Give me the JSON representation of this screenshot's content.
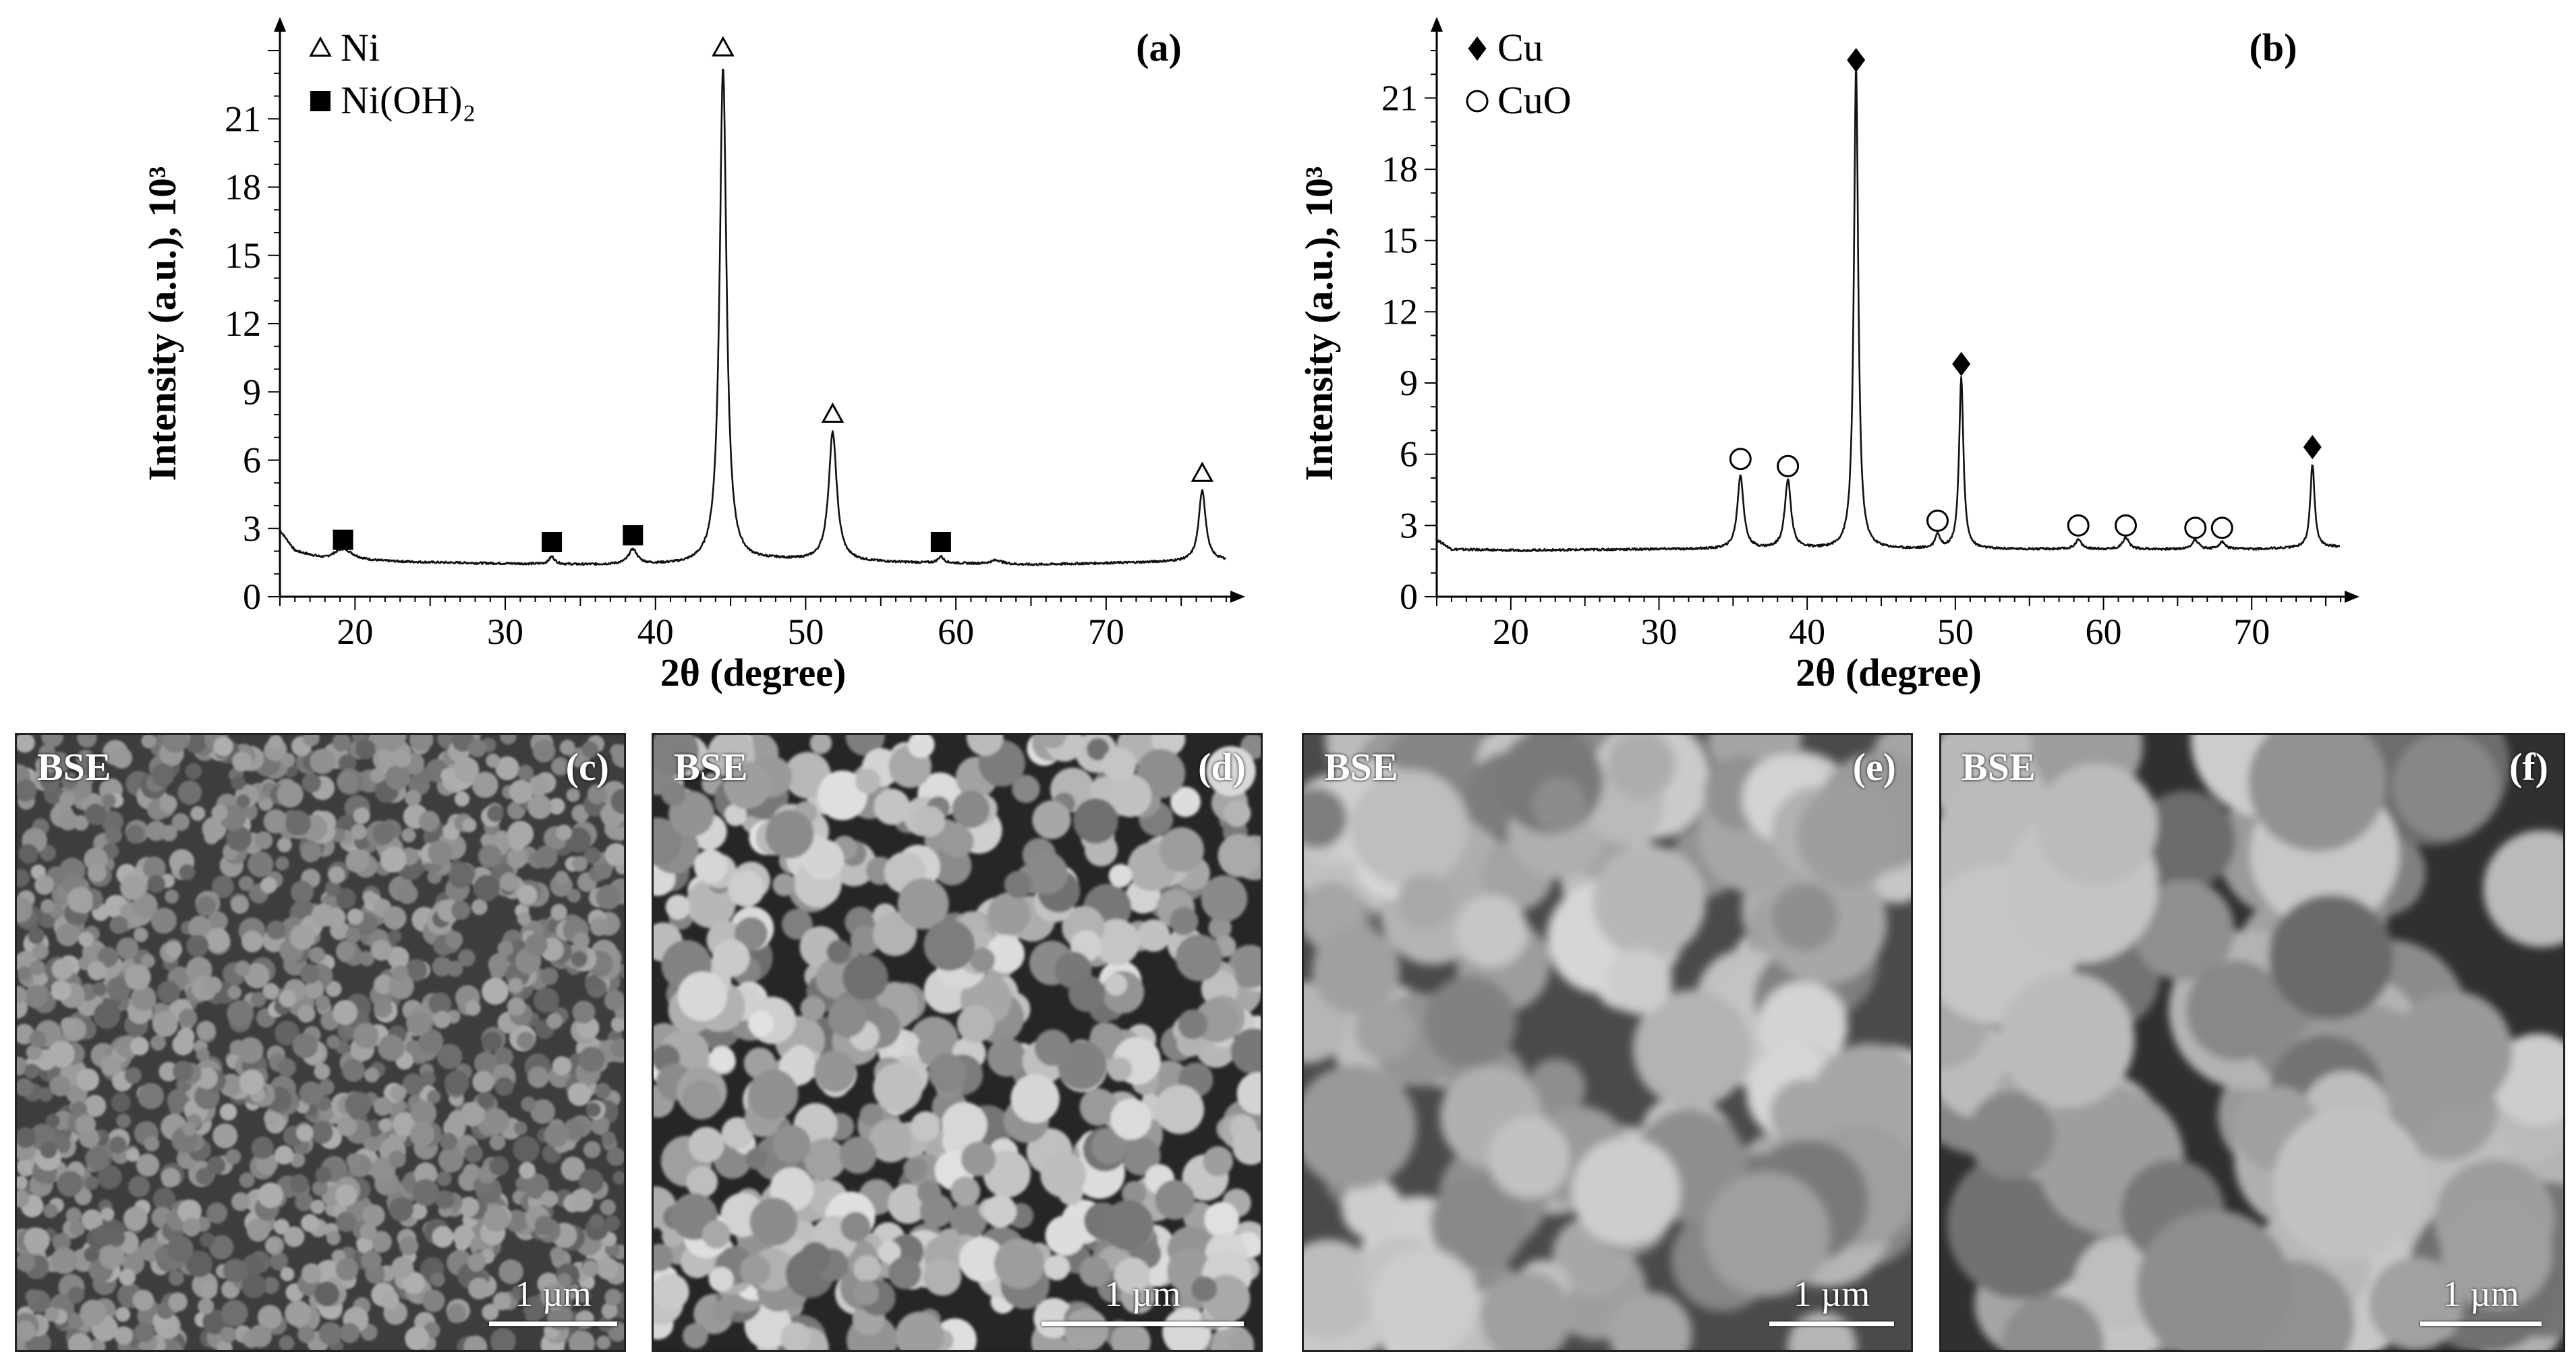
{
  "chart_data": [
    {
      "type": "line",
      "panel_label": "(a)",
      "xlabel": "2θ (degree)",
      "ylabel": "Intensity (a.u.), 10³",
      "xlim": [
        15,
        78
      ],
      "ylim": [
        0,
        24
      ],
      "x_ticks": [
        20,
        30,
        40,
        50,
        60,
        70
      ],
      "y_ticks": [
        0,
        3,
        6,
        9,
        12,
        15,
        18,
        21
      ],
      "baseline": [
        [
          15,
          2.9
        ],
        [
          16,
          2.0
        ],
        [
          18,
          1.6
        ],
        [
          25,
          1.5
        ],
        [
          35,
          1.4
        ],
        [
          42,
          1.4
        ],
        [
          48,
          1.6
        ],
        [
          56,
          1.5
        ],
        [
          65,
          1.4
        ],
        [
          72,
          1.5
        ],
        [
          78,
          1.6
        ]
      ],
      "peaks": [
        {
          "x": 19.2,
          "y": 2.1,
          "w": 1.6
        },
        {
          "x": 33.1,
          "y": 1.75,
          "w": 0.45
        },
        {
          "x": 38.5,
          "y": 2.05,
          "w": 0.7
        },
        {
          "x": 44.5,
          "y": 23.3,
          "w": 0.55
        },
        {
          "x": 51.8,
          "y": 7.2,
          "w": 0.65
        },
        {
          "x": 59.0,
          "y": 1.75,
          "w": 0.45
        },
        {
          "x": 62.7,
          "y": 1.6,
          "w": 0.9
        },
        {
          "x": 76.4,
          "y": 4.7,
          "w": 0.55
        }
      ],
      "markers": [
        {
          "symbol": "triangle",
          "x": 44.5,
          "y": 24.1
        },
        {
          "symbol": "triangle",
          "x": 51.8,
          "y": 8.0
        },
        {
          "symbol": "triangle",
          "x": 76.4,
          "y": 5.4
        },
        {
          "symbol": "square",
          "x": 19.2,
          "y": 2.5
        },
        {
          "symbol": "square",
          "x": 33.1,
          "y": 2.4
        },
        {
          "symbol": "square",
          "x": 38.5,
          "y": 2.7
        },
        {
          "symbol": "square",
          "x": 59.0,
          "y": 2.4
        }
      ],
      "legend": [
        {
          "symbol": "triangle",
          "label": "Ni"
        },
        {
          "symbol": "square",
          "label": "Ni(OH)₂"
        }
      ],
      "legend_position": "top-left"
    },
    {
      "type": "line",
      "panel_label": "(b)",
      "xlabel": "2θ (degree)",
      "ylabel": "Intensity (a.u.), 10³",
      "xlim": [
        15,
        76
      ],
      "ylim": [
        0,
        23
      ],
      "x_ticks": [
        20,
        30,
        40,
        50,
        60,
        70
      ],
      "y_ticks": [
        0,
        3,
        6,
        9,
        12,
        15,
        18,
        21
      ],
      "baseline": [
        [
          15,
          2.4
        ],
        [
          16,
          2.0
        ],
        [
          20,
          1.95
        ],
        [
          30,
          2.0
        ],
        [
          40,
          2.0
        ],
        [
          50,
          2.0
        ],
        [
          60,
          2.0
        ],
        [
          70,
          2.0
        ],
        [
          76,
          2.1
        ]
      ],
      "peaks": [
        {
          "x": 35.5,
          "y": 5.1,
          "w": 0.5
        },
        {
          "x": 38.7,
          "y": 4.9,
          "w": 0.5
        },
        {
          "x": 43.3,
          "y": 22.3,
          "w": 0.35
        },
        {
          "x": 48.8,
          "y": 2.6,
          "w": 0.4
        },
        {
          "x": 50.4,
          "y": 9.2,
          "w": 0.35
        },
        {
          "x": 58.3,
          "y": 2.4,
          "w": 0.5
        },
        {
          "x": 61.5,
          "y": 2.5,
          "w": 0.5
        },
        {
          "x": 66.2,
          "y": 2.4,
          "w": 0.5
        },
        {
          "x": 68.0,
          "y": 2.3,
          "w": 0.5
        },
        {
          "x": 74.1,
          "y": 5.6,
          "w": 0.35
        }
      ],
      "markers": [
        {
          "symbol": "diamond",
          "x": 43.3,
          "y": 22.6
        },
        {
          "symbol": "diamond",
          "x": 50.4,
          "y": 9.8
        },
        {
          "symbol": "diamond",
          "x": 74.1,
          "y": 6.3
        },
        {
          "symbol": "circle",
          "x": 35.5,
          "y": 5.8
        },
        {
          "symbol": "circle",
          "x": 38.7,
          "y": 5.5
        },
        {
          "symbol": "circle",
          "x": 48.8,
          "y": 3.2
        },
        {
          "symbol": "circle",
          "x": 58.3,
          "y": 3.0
        },
        {
          "symbol": "circle",
          "x": 61.5,
          "y": 3.0
        },
        {
          "symbol": "circle",
          "x": 66.2,
          "y": 2.9
        },
        {
          "symbol": "circle",
          "x": 68.0,
          "y": 2.9
        }
      ],
      "legend": [
        {
          "symbol": "diamond",
          "label": "Cu"
        },
        {
          "symbol": "circle",
          "label": "CuO"
        }
      ],
      "legend_position": "top-left"
    }
  ],
  "micrographs": [
    {
      "detector": "BSE",
      "label": "(c)",
      "scale_bar": "1 µm"
    },
    {
      "detector": "BSE",
      "label": "(d)",
      "scale_bar": "1 µm"
    },
    {
      "detector": "BSE",
      "label": "(e)",
      "scale_bar": "1 µm"
    },
    {
      "detector": "BSE",
      "label": "(f)",
      "scale_bar": "1 µm"
    }
  ]
}
